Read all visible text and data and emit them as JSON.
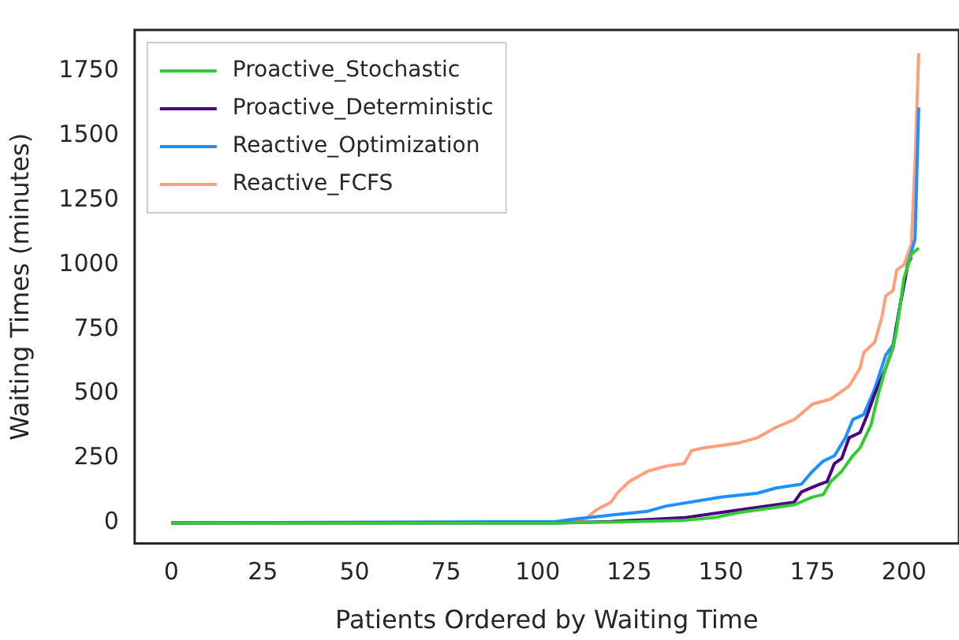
{
  "chart_data": {
    "type": "line",
    "xlabel": "Patients Ordered by Waiting Time",
    "ylabel": "Waiting Times (minutes)",
    "xlim": [
      -10,
      215
    ],
    "xticks": [
      0,
      25,
      50,
      75,
      100,
      125,
      150,
      175,
      200
    ],
    "ylim": [
      -80,
      1910
    ],
    "yticks": [
      0,
      250,
      500,
      750,
      1000,
      1250,
      1500,
      1750
    ],
    "grid": false,
    "legend": "top left",
    "marker": "none",
    "line_style": "solid",
    "series": [
      {
        "name": "Proactive_Stochastic",
        "color": "#32cd32",
        "x": [
          0,
          105,
          120,
          140,
          148,
          155,
          160,
          170,
          175,
          178,
          180,
          183,
          186,
          188,
          191,
          193,
          195,
          197,
          198,
          200,
          202,
          204
        ],
        "values": [
          0,
          0,
          3,
          10,
          20,
          40,
          50,
          70,
          100,
          110,
          160,
          200,
          260,
          290,
          380,
          500,
          600,
          680,
          750,
          950,
          1040,
          1065
        ]
      },
      {
        "name": "Proactive_Deterministic",
        "color": "#4b0082",
        "x": [
          0,
          105,
          120,
          140,
          150,
          165,
          170,
          172,
          177,
          179,
          181,
          183,
          185,
          188,
          190,
          192,
          195,
          197,
          199,
          201,
          202
        ],
        "values": [
          0,
          0,
          5,
          20,
          40,
          70,
          80,
          120,
          150,
          160,
          230,
          250,
          330,
          350,
          420,
          500,
          600,
          680,
          850,
          1000,
          1030
        ]
      },
      {
        "name": "Reactive_Optimization",
        "color": "#1e90ff",
        "x": [
          0,
          105,
          110,
          120,
          130,
          135,
          150,
          160,
          165,
          172,
          175,
          178,
          181,
          184,
          186,
          189,
          192,
          195,
          197,
          199,
          201,
          203,
          204
        ],
        "values": [
          0,
          5,
          15,
          30,
          45,
          65,
          100,
          115,
          135,
          150,
          200,
          240,
          260,
          330,
          400,
          420,
          520,
          650,
          690,
          850,
          1000,
          1100,
          1610
        ]
      },
      {
        "name": "Reactive_FCFS",
        "color": "#ffa07a",
        "x": [
          0,
          105,
          113,
          116,
          120,
          122,
          125,
          130,
          135,
          140,
          142,
          145,
          150,
          155,
          160,
          165,
          170,
          175,
          180,
          185,
          188,
          189,
          192,
          194,
          195,
          197,
          198,
          200,
          202,
          203,
          204
        ],
        "values": [
          0,
          3,
          15,
          50,
          80,
          120,
          160,
          200,
          220,
          230,
          280,
          290,
          300,
          310,
          330,
          370,
          400,
          460,
          480,
          530,
          600,
          660,
          700,
          800,
          880,
          900,
          980,
          1000,
          1080,
          1400,
          1820
        ]
      }
    ]
  }
}
